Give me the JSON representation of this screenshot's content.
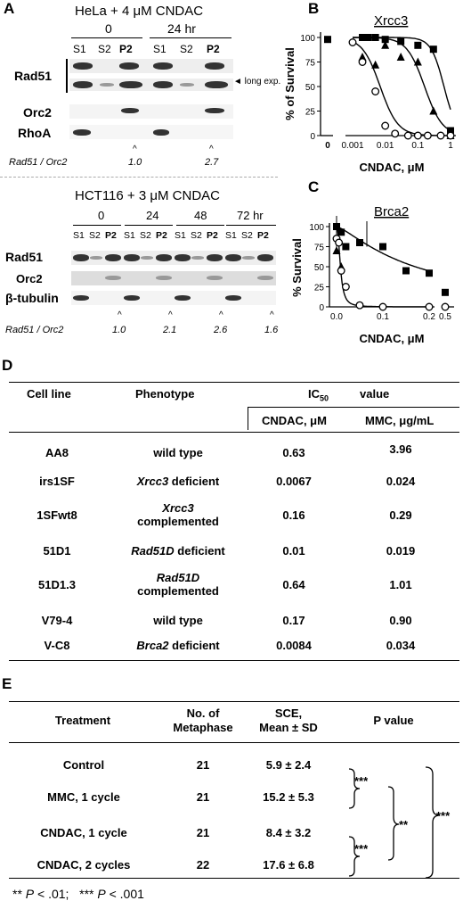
{
  "panelA": {
    "letter": "A",
    "hela": {
      "title": "HeLa + 4 μM CNDAC",
      "time_groups": [
        "0",
        "24 hr"
      ],
      "lanes": [
        "S1",
        "S2",
        "P2",
        "S1",
        "S2",
        "P2"
      ],
      "labels": {
        "rad51": "Rad51",
        "orc2": "Orc2",
        "rhoa": "RhoA"
      },
      "long_exp": "◄ long exp.",
      "ratio_label": "Rad51 / Orc2",
      "ratios": [
        "1.0",
        "2.7"
      ]
    },
    "hct": {
      "title": "HCT116 + 3 μM CNDAC",
      "time_groups": [
        "0",
        "24",
        "48",
        "72 hr"
      ],
      "lanes": [
        "S1",
        "S2",
        "P2",
        "S1",
        "S2",
        "P2",
        "S1",
        "S2",
        "P2",
        "S1",
        "S2",
        "P2"
      ],
      "labels": {
        "rad51": "Rad51",
        "orc2": "Orc2",
        "tubulin": "β-tubulin"
      },
      "ratio_label": "Rad51 / Orc2",
      "ratios": [
        "1.0",
        "2.1",
        "2.6",
        "1.6"
      ]
    }
  },
  "panelB": {
    "letter": "B",
    "chart_data": {
      "type": "scatter",
      "title": "Xrcc3",
      "xlabel": "CNDAC, μM",
      "ylabel": "% of Survival",
      "xscale": "log",
      "xticks": [
        "0",
        "0.001",
        "0.01",
        "0.1",
        "1"
      ],
      "yticks": [
        "0",
        "25",
        "50",
        "75",
        "100"
      ],
      "ylim": [
        0,
        105
      ],
      "series": [
        {
          "marker": "square-filled",
          "x": [
            0,
            0.002,
            0.003,
            0.005,
            0.01,
            0.03,
            0.1,
            0.3,
            1
          ],
          "y": [
            98,
            100,
            100,
            100,
            98,
            96,
            92,
            88,
            5
          ]
        },
        {
          "marker": "triangle-filled",
          "x": [
            0.002,
            0.005,
            0.01,
            0.03,
            0.1,
            0.3,
            1
          ],
          "y": [
            80,
            72,
            92,
            80,
            75,
            25,
            0
          ]
        },
        {
          "marker": "circle-open",
          "x": [
            0.001,
            0.002,
            0.005,
            0.01,
            0.02,
            0.05,
            0.1,
            0.2,
            0.5,
            1
          ],
          "y": [
            95,
            75,
            45,
            10,
            2,
            0,
            0,
            0,
            0,
            0
          ]
        }
      ]
    }
  },
  "panelC": {
    "letter": "C",
    "chart_data": {
      "type": "scatter",
      "title": "Brca2",
      "xlabel": "CNDAC, μM",
      "ylabel": "% Survival",
      "xticks": [
        "0.0",
        "0.1",
        "0.2",
        "0.5"
      ],
      "yticks": [
        "0",
        "25",
        "50",
        "75",
        "100"
      ],
      "ylim": [
        0,
        105
      ],
      "series": [
        {
          "marker": "square-filled",
          "x": [
            0,
            0.01,
            0.02,
            0.05,
            0.1,
            0.15,
            0.2,
            0.5
          ],
          "y": [
            100,
            93,
            75,
            80,
            75,
            45,
            42,
            18
          ]
        },
        {
          "marker": "triangle-filled",
          "x": [
            0,
            0.01
          ],
          "y": [
            70,
            50
          ]
        },
        {
          "marker": "circle-open",
          "x": [
            0,
            0.005,
            0.01,
            0.02,
            0.05,
            0.1,
            0.2,
            0.5
          ],
          "y": [
            85,
            80,
            45,
            25,
            2,
            0,
            0,
            0
          ]
        }
      ]
    }
  },
  "panelD": {
    "letter": "D",
    "headers": {
      "cell_line": "Cell line",
      "phenotype": "Phenotype",
      "ic": "IC",
      "ic_sub": "50",
      "value": "value",
      "cndac": "CNDAC, μM",
      "mmc": "MMC, μg/mL"
    },
    "rows": [
      {
        "line": "AA8",
        "pheno_i": "",
        "pheno": "wild type",
        "cndac": "0.63",
        "mmc": "3.96"
      },
      {
        "line": "irs1SF",
        "pheno_i": "Xrcc3",
        "pheno": " deficient",
        "cndac": "0.0067",
        "mmc": "0.024"
      },
      {
        "line": "1SFwt8",
        "pheno_i": "Xrcc3",
        "pheno": "complemented",
        "cndac": "0.16",
        "mmc": "0.29"
      },
      {
        "line": "51D1",
        "pheno_i": "Rad51D",
        "pheno": " deficient",
        "cndac": "0.01",
        "mmc": "0.019"
      },
      {
        "line": "51D1.3",
        "pheno_i": "Rad51D",
        "pheno": "complemented",
        "cndac": "0.64",
        "mmc": "1.01"
      },
      {
        "line": "V79-4",
        "pheno_i": "",
        "pheno": "wild type",
        "cndac": "0.17",
        "mmc": "0.90"
      },
      {
        "line": "V-C8",
        "pheno_i": "Brca2",
        "pheno": " deficient",
        "cndac": "0.0084",
        "mmc": "0.034"
      }
    ]
  },
  "panelE": {
    "letter": "E",
    "headers": {
      "treatment": "Treatment",
      "no1": "No. of",
      "no2": "Metaphase",
      "sce1": "SCE,",
      "sce2": "Mean ± SD",
      "p": "P value"
    },
    "rows": [
      {
        "t": "Control",
        "n": "21",
        "sce": "5.9 ± 2.4"
      },
      {
        "t": "MMC, 1 cycle",
        "n": "21",
        "sce": "15.2 ± 5.3"
      },
      {
        "t": "CNDAC, 1 cycle",
        "n": "21",
        "sce": "8.4 ± 3.2"
      },
      {
        "t": "CNDAC, 2 cycles",
        "n": "22",
        "sce": "17.6 ± 6.8"
      }
    ],
    "sig": {
      "s1": "***",
      "s2": "**",
      "s3": "***",
      "s4": "***"
    },
    "footnote": {
      "a": "**",
      "b": "P",
      "c": " < .01;   ***",
      "d": "P",
      "e": " < .001"
    }
  }
}
